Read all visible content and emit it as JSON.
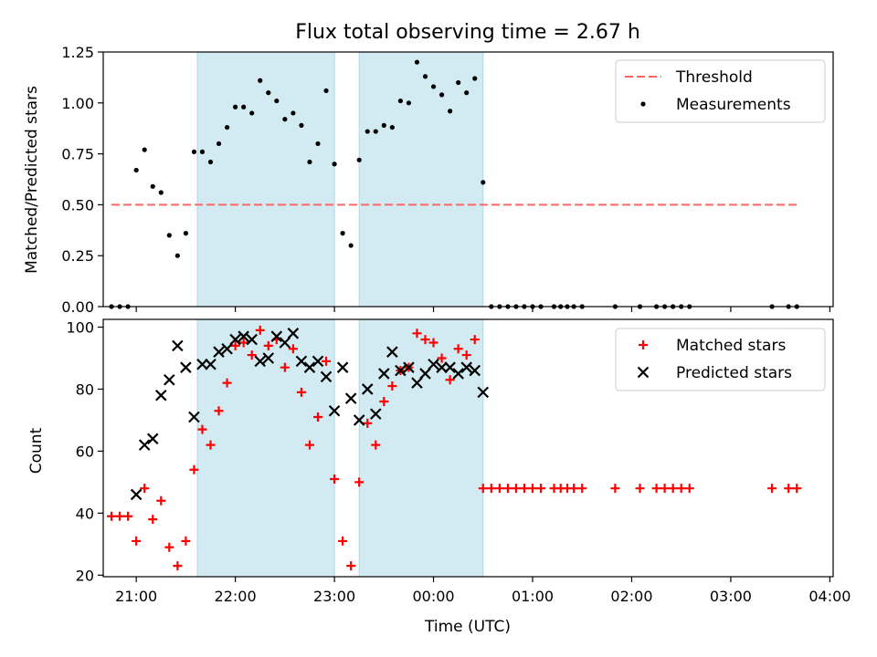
{
  "figure": {
    "title": "Flux total observing time = 2.67 h"
  },
  "chart_data": [
    {
      "type": "scatter",
      "panel": "top",
      "ylabel": "Matched/Predicted stars",
      "ylim": [
        0,
        1.25
      ],
      "yticks": [
        "0.00",
        "0.25",
        "0.50",
        "0.75",
        "1.00",
        "1.25"
      ],
      "xlim": [
        "20:40",
        "04:02"
      ],
      "shaded_intervals": [
        [
          "21:37",
          "23:00"
        ],
        [
          "23:15",
          "00:30"
        ]
      ],
      "shade_color": "#add8e6",
      "legend": {
        "placement": "top-right",
        "entries": [
          "Threshold",
          "Measurements"
        ]
      },
      "series": [
        {
          "name": "Threshold",
          "style": "dashed-line",
          "color": "#ff6666",
          "x": [
            "20:45",
            "03:40"
          ],
          "y": [
            0.5,
            0.5
          ]
        },
        {
          "name": "Measurements",
          "style": "dots",
          "color": "#000000",
          "x": [
            "20:45",
            "20:50",
            "20:55",
            "21:00",
            "21:05",
            "21:10",
            "21:15",
            "21:20",
            "21:25",
            "21:30",
            "21:35",
            "21:40",
            "21:45",
            "21:50",
            "21:55",
            "22:00",
            "22:05",
            "22:10",
            "22:15",
            "22:20",
            "22:25",
            "22:30",
            "22:35",
            "22:40",
            "22:45",
            "22:50",
            "22:55",
            "23:00",
            "23:05",
            "23:10",
            "23:15",
            "23:20",
            "23:25",
            "23:30",
            "23:35",
            "23:40",
            "23:45",
            "23:50",
            "23:55",
            "00:00",
            "00:05",
            "00:10",
            "00:15",
            "00:20",
            "00:25",
            "00:30",
            "00:35",
            "00:40",
            "00:45",
            "00:50",
            "00:55",
            "01:00",
            "01:05",
            "01:13",
            "01:17",
            "01:21",
            "01:25",
            "01:30",
            "01:50",
            "02:05",
            "02:15",
            "02:20",
            "02:25",
            "02:30",
            "02:35",
            "03:25",
            "03:35",
            "03:40"
          ],
          "y": [
            0,
            0,
            0,
            0.67,
            0.77,
            0.59,
            0.56,
            0.35,
            0.25,
            0.36,
            0.76,
            0.76,
            0.71,
            0.8,
            0.88,
            0.98,
            0.98,
            0.95,
            1.11,
            1.05,
            1.01,
            0.92,
            0.95,
            0.89,
            0.71,
            0.8,
            1.06,
            0.7,
            0.36,
            0.3,
            0.72,
            0.86,
            0.86,
            0.89,
            0.88,
            1.01,
            1.0,
            1.2,
            1.13,
            1.08,
            1.04,
            0.96,
            1.1,
            1.05,
            1.12,
            0.61,
            0,
            0,
            0,
            0,
            0,
            0,
            0,
            0,
            0,
            0,
            0,
            0,
            0,
            0,
            0,
            0,
            0,
            0,
            0,
            0,
            0,
            0
          ]
        }
      ]
    },
    {
      "type": "scatter",
      "panel": "bottom",
      "xlabel": "Time (UTC)",
      "ylabel": "Count",
      "ylim": [
        19.5,
        102.5
      ],
      "yticks": [
        "20",
        "40",
        "60",
        "80",
        "100"
      ],
      "xlim": [
        "20:40",
        "04:02"
      ],
      "xticks": [
        "21:00",
        "22:00",
        "23:00",
        "00:00",
        "01:00",
        "02:00",
        "03:00",
        "04:00"
      ],
      "shaded_intervals": [
        [
          "21:37",
          "23:00"
        ],
        [
          "23:15",
          "00:30"
        ]
      ],
      "shade_color": "#add8e6",
      "legend": {
        "placement": "top-right",
        "entries": [
          "Matched stars",
          "Predicted stars"
        ]
      },
      "series": [
        {
          "name": "Matched stars",
          "marker": "plus",
          "color": "#ff0000",
          "x": [
            "20:45",
            "20:50",
            "20:55",
            "21:00",
            "21:05",
            "21:10",
            "21:15",
            "21:20",
            "21:25",
            "21:30",
            "21:35",
            "21:40",
            "21:45",
            "21:50",
            "21:55",
            "22:00",
            "22:05",
            "22:10",
            "22:15",
            "22:20",
            "22:25",
            "22:30",
            "22:35",
            "22:40",
            "22:45",
            "22:50",
            "22:55",
            "23:00",
            "23:05",
            "23:10",
            "23:15",
            "23:20",
            "23:25",
            "23:30",
            "23:35",
            "23:40",
            "23:45",
            "23:50",
            "23:55",
            "00:00",
            "00:05",
            "00:10",
            "00:15",
            "00:20",
            "00:25",
            "00:30",
            "00:35",
            "00:40",
            "00:45",
            "00:50",
            "00:55",
            "01:00",
            "01:05",
            "01:13",
            "01:17",
            "01:21",
            "01:25",
            "01:30",
            "01:50",
            "02:05",
            "02:15",
            "02:20",
            "02:25",
            "02:30",
            "02:35",
            "03:25",
            "03:35",
            "03:40"
          ],
          "y": [
            39,
            39,
            39,
            31,
            48,
            38,
            44,
            29,
            23,
            31,
            54,
            67,
            62,
            73,
            82,
            94,
            95,
            91,
            99,
            94,
            96,
            87,
            93,
            79,
            62,
            71,
            89,
            51,
            31,
            23,
            50,
            69,
            62,
            76,
            81,
            86,
            87,
            98,
            96,
            95,
            90,
            83,
            93,
            91,
            96,
            48,
            48,
            48,
            48,
            48,
            48,
            48,
            48,
            48,
            48,
            48,
            48,
            48,
            48,
            48,
            48,
            48,
            48,
            48,
            48,
            48,
            48,
            48
          ]
        },
        {
          "name": "Predicted stars",
          "marker": "x",
          "color": "#000000",
          "x": [
            "21:00",
            "21:05",
            "21:10",
            "21:15",
            "21:20",
            "21:25",
            "21:30",
            "21:35",
            "21:40",
            "21:45",
            "21:50",
            "21:55",
            "22:00",
            "22:05",
            "22:10",
            "22:15",
            "22:20",
            "22:25",
            "22:30",
            "22:35",
            "22:40",
            "22:45",
            "22:50",
            "22:55",
            "23:00",
            "23:05",
            "23:10",
            "23:15",
            "23:20",
            "23:25",
            "23:30",
            "23:35",
            "23:40",
            "23:45",
            "23:50",
            "23:55",
            "00:00",
            "00:05",
            "00:10",
            "00:15",
            "00:20",
            "00:25",
            "00:30"
          ],
          "y": [
            46,
            62,
            64,
            78,
            83,
            94,
            87,
            71,
            88,
            88,
            92,
            93,
            96,
            97,
            96,
            89,
            90,
            97,
            95,
            98,
            89,
            87,
            89,
            84,
            73,
            87,
            77,
            70,
            80,
            72,
            85,
            92,
            86,
            87,
            82,
            85,
            88,
            87,
            87,
            85,
            87,
            86,
            79
          ]
        }
      ]
    }
  ]
}
